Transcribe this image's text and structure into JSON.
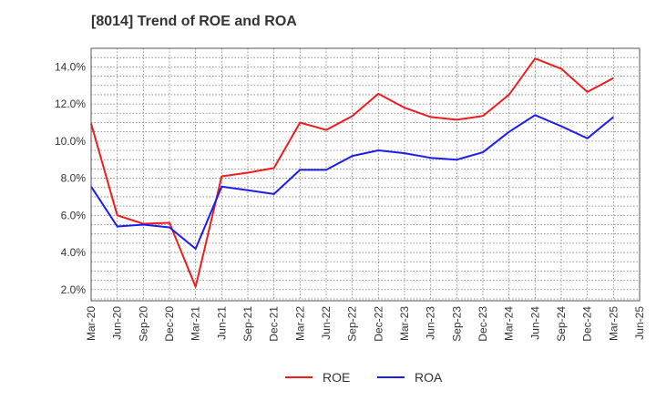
{
  "chart_data": {
    "type": "line",
    "title": "[8014]  Trend of ROE and ROA",
    "xlabel": "",
    "ylabel": "",
    "x_ticks": [
      "Mar-20",
      "Jun-20",
      "Sep-20",
      "Dec-20",
      "Mar-21",
      "Jun-21",
      "Sep-21",
      "Dec-21",
      "Mar-22",
      "Jun-22",
      "Sep-22",
      "Dec-22",
      "Mar-23",
      "Jun-23",
      "Sep-23",
      "Dec-23",
      "Mar-24",
      "Jun-24",
      "Sep-24",
      "Dec-24",
      "Mar-25",
      "Jun-25"
    ],
    "y_ticks": [
      "2.0%",
      "4.0%",
      "6.0%",
      "8.0%",
      "10.0%",
      "12.0%",
      "14.0%"
    ],
    "y_tick_values": [
      2,
      4,
      6,
      8,
      10,
      12,
      14
    ],
    "ylim": [
      1.4,
      15.0
    ],
    "grid": true,
    "legend_position": "bottom-center",
    "series": [
      {
        "name": "ROE",
        "color": "#ee1c1c",
        "x": [
          "Mar-20",
          "Jun-20",
          "Sep-20",
          "Dec-20",
          "Mar-21",
          "Jun-21",
          "Sep-21",
          "Dec-21",
          "Mar-22",
          "Jun-22",
          "Sep-22",
          "Dec-22",
          "Mar-23",
          "Jun-23",
          "Sep-23",
          "Dec-23",
          "Mar-24",
          "Jun-24",
          "Sep-24",
          "Dec-24",
          "Mar-25"
        ],
        "values": [
          10.95,
          6.0,
          5.55,
          5.6,
          2.15,
          8.1,
          8.3,
          8.55,
          11.0,
          10.6,
          11.35,
          12.55,
          11.8,
          11.3,
          11.15,
          11.35,
          12.5,
          14.45,
          13.9,
          12.65,
          13.4
        ]
      },
      {
        "name": "ROA",
        "color": "#1c1cee",
        "x": [
          "Mar-20",
          "Jun-20",
          "Sep-20",
          "Dec-20",
          "Mar-21",
          "Jun-21",
          "Sep-21",
          "Dec-21",
          "Mar-22",
          "Jun-22",
          "Sep-22",
          "Dec-22",
          "Mar-23",
          "Jun-23",
          "Sep-23",
          "Dec-23",
          "Mar-24",
          "Jun-24",
          "Sep-24",
          "Dec-24",
          "Mar-25"
        ],
        "values": [
          7.55,
          5.4,
          5.5,
          5.35,
          4.2,
          7.55,
          7.35,
          7.15,
          8.45,
          8.45,
          9.2,
          9.5,
          9.35,
          9.1,
          9.0,
          9.4,
          10.5,
          11.4,
          10.8,
          10.15,
          11.3
        ]
      }
    ]
  }
}
